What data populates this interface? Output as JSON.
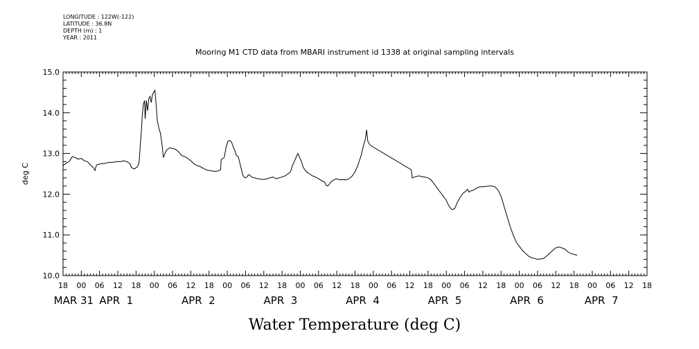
{
  "header": {
    "longitude": "LONGITUDE : 122W(-122)",
    "latitude": "LATITUDE : 36.8N",
    "depth": "DEPTH (m) : 1",
    "year": "YEAR : 2011"
  },
  "chart_data": {
    "type": "line",
    "title": "Mooring M1 CTD data from MBARI instrument id 1338 at original sampling intervals",
    "xlabel": "Water Temperature (deg C)",
    "ylabel": "deg C",
    "ylim": [
      10.0,
      15.0
    ],
    "yticks": [
      "10.0",
      "11.0",
      "12.0",
      "13.0",
      "14.0",
      "15.0"
    ],
    "x_unit": "hours since MAR 31 00:00",
    "xlim": [
      -6,
      186
    ],
    "xticks": [
      {
        "h": -6,
        "label": "18"
      },
      {
        "h": 0,
        "label": "00"
      },
      {
        "h": 6,
        "label": "06"
      },
      {
        "h": 12,
        "label": "12"
      },
      {
        "h": 18,
        "label": "18"
      },
      {
        "h": 24,
        "label": "00"
      },
      {
        "h": 30,
        "label": "06"
      },
      {
        "h": 36,
        "label": "12"
      },
      {
        "h": 42,
        "label": "18"
      },
      {
        "h": 48,
        "label": "00"
      },
      {
        "h": 54,
        "label": "06"
      },
      {
        "h": 60,
        "label": "12"
      },
      {
        "h": 66,
        "label": "18"
      },
      {
        "h": 72,
        "label": "00"
      },
      {
        "h": 78,
        "label": "06"
      },
      {
        "h": 84,
        "label": "12"
      },
      {
        "h": 90,
        "label": "18"
      },
      {
        "h": 96,
        "label": "00"
      },
      {
        "h": 102,
        "label": "06"
      },
      {
        "h": 108,
        "label": "12"
      },
      {
        "h": 114,
        "label": "18"
      },
      {
        "h": 120,
        "label": "00"
      },
      {
        "h": 126,
        "label": "06"
      },
      {
        "h": 132,
        "label": "12"
      },
      {
        "h": 138,
        "label": "18"
      },
      {
        "h": 144,
        "label": "00"
      },
      {
        "h": 150,
        "label": "06"
      },
      {
        "h": 156,
        "label": "12"
      },
      {
        "h": 162,
        "label": "18"
      },
      {
        "h": 168,
        "label": "00"
      },
      {
        "h": 174,
        "label": "06"
      },
      {
        "h": 180,
        "label": "12"
      },
      {
        "h": 186,
        "label": "18"
      }
    ],
    "date_labels": [
      {
        "h": -2.5,
        "label": "MAR 31"
      },
      {
        "h": 11.5,
        "label": "APR  1"
      },
      {
        "h": 38.5,
        "label": "APR  2"
      },
      {
        "h": 65.5,
        "label": "APR  3"
      },
      {
        "h": 92.5,
        "label": "APR  4"
      },
      {
        "h": 119.5,
        "label": "APR  5"
      },
      {
        "h": 146.5,
        "label": "APR  6"
      },
      {
        "h": 171,
        "label": "APR  7"
      }
    ],
    "series": [
      {
        "color": "#000000",
        "points": [
          [
            -6.0,
            12.7
          ],
          [
            -5.0,
            12.76
          ],
          [
            -4.0,
            12.8
          ],
          [
            -3.3,
            12.88
          ],
          [
            -3.0,
            12.92
          ],
          [
            -2.0,
            12.9
          ],
          [
            -1.0,
            12.86
          ],
          [
            0.0,
            12.88
          ],
          [
            1.0,
            12.82
          ],
          [
            2.0,
            12.8
          ],
          [
            3.0,
            12.72
          ],
          [
            4.0,
            12.65
          ],
          [
            4.5,
            12.58
          ],
          [
            5.0,
            12.72
          ],
          [
            6.0,
            12.74
          ],
          [
            7.0,
            12.75
          ],
          [
            8.0,
            12.76
          ],
          [
            9.0,
            12.78
          ],
          [
            10.0,
            12.78
          ],
          [
            11.0,
            12.79
          ],
          [
            12.0,
            12.8
          ],
          [
            13.0,
            12.8
          ],
          [
            14.0,
            12.82
          ],
          [
            15.0,
            12.8
          ],
          [
            16.0,
            12.75
          ],
          [
            16.5,
            12.65
          ],
          [
            17.5,
            12.62
          ],
          [
            18.5,
            12.68
          ],
          [
            19.0,
            12.78
          ],
          [
            19.4,
            13.2
          ],
          [
            19.8,
            13.6
          ],
          [
            20.0,
            13.9
          ],
          [
            20.4,
            14.2
          ],
          [
            20.8,
            14.3
          ],
          [
            21.0,
            13.85
          ],
          [
            21.4,
            14.3
          ],
          [
            21.8,
            14.05
          ],
          [
            22.2,
            14.35
          ],
          [
            22.6,
            14.4
          ],
          [
            23.0,
            14.25
          ],
          [
            23.4,
            14.45
          ],
          [
            23.8,
            14.5
          ],
          [
            24.2,
            14.55
          ],
          [
            24.6,
            14.2
          ],
          [
            25.0,
            13.8
          ],
          [
            25.6,
            13.6
          ],
          [
            26.0,
            13.5
          ],
          [
            26.4,
            13.3
          ],
          [
            27.0,
            12.9
          ],
          [
            27.5,
            13.0
          ],
          [
            28.0,
            13.08
          ],
          [
            29.0,
            13.14
          ],
          [
            30.0,
            13.12
          ],
          [
            31.0,
            13.1
          ],
          [
            32.0,
            13.04
          ],
          [
            33.0,
            12.95
          ],
          [
            34.0,
            12.92
          ],
          [
            35.0,
            12.88
          ],
          [
            36.0,
            12.82
          ],
          [
            37.0,
            12.75
          ],
          [
            38.0,
            12.7
          ],
          [
            39.0,
            12.68
          ],
          [
            40.0,
            12.64
          ],
          [
            41.0,
            12.6
          ],
          [
            42.0,
            12.58
          ],
          [
            43.0,
            12.57
          ],
          [
            44.0,
            12.56
          ],
          [
            45.0,
            12.57
          ],
          [
            45.8,
            12.6
          ],
          [
            46.0,
            12.85
          ],
          [
            47.0,
            12.9
          ],
          [
            47.6,
            13.15
          ],
          [
            48.2,
            13.3
          ],
          [
            48.8,
            13.32
          ],
          [
            49.4,
            13.28
          ],
          [
            50.0,
            13.15
          ],
          [
            50.6,
            13.05
          ],
          [
            51.0,
            12.95
          ],
          [
            51.6,
            12.92
          ],
          [
            52.0,
            12.8
          ],
          [
            52.6,
            12.62
          ],
          [
            53.2,
            12.45
          ],
          [
            53.8,
            12.4
          ],
          [
            54.4,
            12.42
          ],
          [
            55.0,
            12.48
          ],
          [
            55.5,
            12.46
          ],
          [
            56.0,
            12.42
          ],
          [
            57.0,
            12.4
          ],
          [
            58.0,
            12.38
          ],
          [
            59.0,
            12.37
          ],
          [
            60.0,
            12.36
          ],
          [
            61.0,
            12.38
          ],
          [
            62.0,
            12.4
          ],
          [
            63.0,
            12.42
          ],
          [
            64.0,
            12.38
          ],
          [
            65.0,
            12.4
          ],
          [
            66.0,
            12.42
          ],
          [
            67.0,
            12.45
          ],
          [
            68.0,
            12.5
          ],
          [
            68.8,
            12.55
          ],
          [
            69.4,
            12.7
          ],
          [
            70.0,
            12.8
          ],
          [
            70.6,
            12.9
          ],
          [
            71.2,
            13.0
          ],
          [
            71.8,
            12.9
          ],
          [
            72.4,
            12.8
          ],
          [
            73.0,
            12.65
          ],
          [
            74.0,
            12.55
          ],
          [
            75.0,
            12.5
          ],
          [
            76.0,
            12.45
          ],
          [
            77.0,
            12.42
          ],
          [
            78.0,
            12.38
          ],
          [
            79.0,
            12.33
          ],
          [
            80.0,
            12.3
          ],
          [
            80.5,
            12.22
          ],
          [
            81.0,
            12.2
          ],
          [
            81.5,
            12.24
          ],
          [
            82.0,
            12.3
          ],
          [
            83.0,
            12.35
          ],
          [
            84.0,
            12.38
          ],
          [
            85.0,
            12.35
          ],
          [
            86.0,
            12.36
          ],
          [
            87.0,
            12.35
          ],
          [
            88.0,
            12.38
          ],
          [
            89.0,
            12.44
          ],
          [
            90.0,
            12.55
          ],
          [
            91.0,
            12.72
          ],
          [
            92.0,
            12.95
          ],
          [
            92.8,
            13.2
          ],
          [
            93.4,
            13.35
          ],
          [
            93.8,
            13.58
          ],
          [
            94.2,
            13.3
          ],
          [
            94.8,
            13.22
          ],
          [
            95.0,
            13.2
          ],
          [
            108.0,
            12.62
          ],
          [
            108.5,
            12.6
          ],
          [
            108.8,
            12.4
          ],
          [
            109.5,
            12.42
          ],
          [
            111.0,
            12.45
          ],
          [
            112.0,
            12.43
          ],
          [
            113.0,
            12.42
          ],
          [
            114.0,
            12.4
          ],
          [
            115.0,
            12.35
          ],
          [
            116.0,
            12.25
          ],
          [
            117.0,
            12.15
          ],
          [
            118.0,
            12.05
          ],
          [
            119.0,
            11.95
          ],
          [
            120.0,
            11.85
          ],
          [
            120.8,
            11.72
          ],
          [
            121.5,
            11.65
          ],
          [
            122.0,
            11.62
          ],
          [
            122.8,
            11.65
          ],
          [
            123.5,
            11.78
          ],
          [
            124.5,
            11.92
          ],
          [
            125.5,
            12.02
          ],
          [
            126.5,
            12.08
          ],
          [
            127.0,
            12.12
          ],
          [
            127.5,
            12.05
          ],
          [
            128.0,
            12.08
          ],
          [
            129.0,
            12.1
          ],
          [
            130.0,
            12.15
          ],
          [
            131.0,
            12.18
          ],
          [
            132.0,
            12.18
          ],
          [
            133.0,
            12.19
          ],
          [
            134.0,
            12.2
          ],
          [
            135.0,
            12.2
          ],
          [
            136.0,
            12.18
          ],
          [
            137.0,
            12.1
          ],
          [
            138.0,
            11.95
          ],
          [
            139.0,
            11.7
          ],
          [
            140.0,
            11.45
          ],
          [
            141.0,
            11.2
          ],
          [
            142.0,
            11.0
          ],
          [
            143.0,
            10.82
          ],
          [
            144.0,
            10.72
          ],
          [
            145.0,
            10.62
          ],
          [
            146.0,
            10.55
          ],
          [
            147.0,
            10.48
          ],
          [
            148.0,
            10.44
          ],
          [
            149.0,
            10.42
          ],
          [
            150.0,
            10.4
          ],
          [
            151.0,
            10.41
          ],
          [
            152.0,
            10.42
          ],
          [
            153.0,
            10.48
          ],
          [
            154.0,
            10.55
          ],
          [
            155.0,
            10.62
          ],
          [
            156.0,
            10.68
          ],
          [
            157.0,
            10.7
          ],
          [
            158.0,
            10.68
          ],
          [
            159.0,
            10.65
          ],
          [
            160.0,
            10.58
          ],
          [
            161.0,
            10.54
          ],
          [
            162.0,
            10.52
          ],
          [
            163.0,
            10.5
          ]
        ]
      }
    ]
  }
}
